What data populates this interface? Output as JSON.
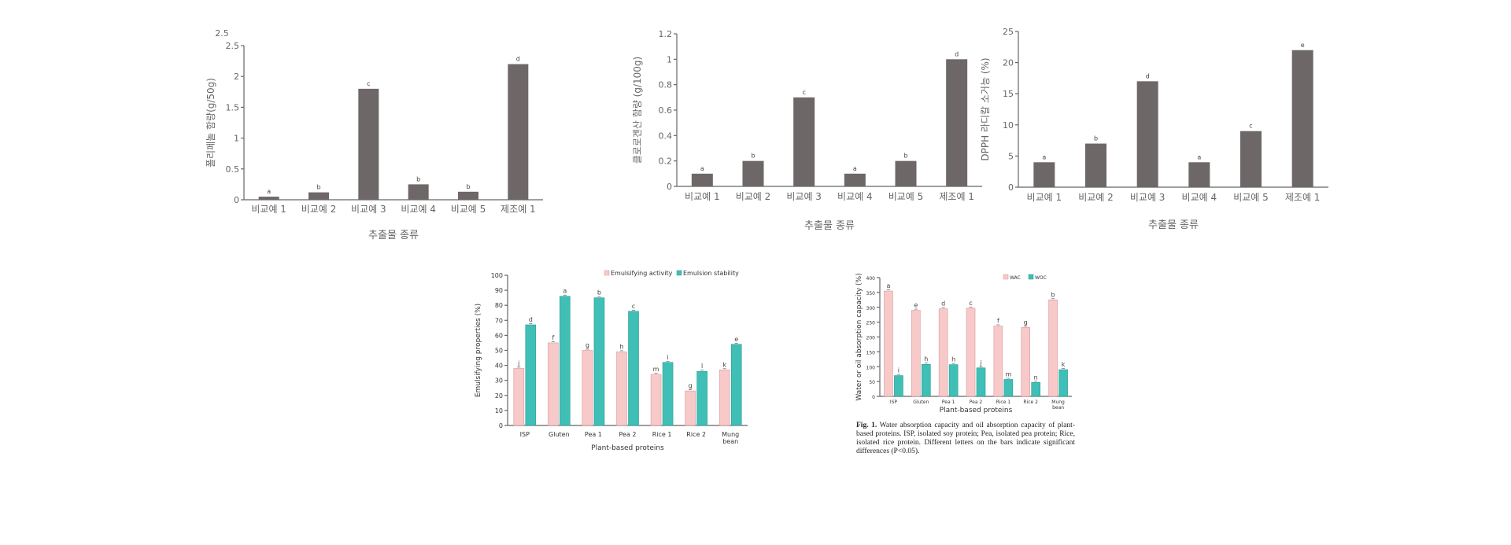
{
  "chart_data": [
    {
      "id": "chart1",
      "type": "bar",
      "ylabel": "폴리페놀 함량(g/50g)",
      "xlabel": "추출물 종류",
      "ylim": [
        0,
        2.5
      ],
      "yticks": [
        0,
        0.5,
        1,
        1.5,
        2,
        2.5
      ],
      "ytick_labels": [
        "0",
        "0.5",
        "1",
        "1.5",
        "2",
        "2.5"
      ],
      "extra_label": "2.5",
      "categories": [
        "비교예 1",
        "비교예 2",
        "비교예 3",
        "비교예 4",
        "비교예 5",
        "제조예 1"
      ],
      "values": [
        0.05,
        0.12,
        1.8,
        0.25,
        0.13,
        2.2
      ],
      "sig_letters": [
        "a",
        "b",
        "c",
        "b",
        "b",
        "d"
      ],
      "bar_color": "#6e6767"
    },
    {
      "id": "chart2",
      "type": "bar",
      "ylabel": "클로로겐산 함량 (g/100g)",
      "xlabel": "추출물 종류",
      "ylim": [
        0,
        1.2
      ],
      "yticks": [
        0,
        0.2,
        0.4,
        0.6,
        0.8,
        1,
        1.2
      ],
      "ytick_labels": [
        "0",
        "0.2",
        "0.4",
        "0.6",
        "0.8",
        "1",
        "1.2"
      ],
      "categories": [
        "비교예 1",
        "비교예 2",
        "비교예 3",
        "비교예 4",
        "비교예 5",
        "제조예 1"
      ],
      "values": [
        0.1,
        0.2,
        0.7,
        0.1,
        0.2,
        1.0
      ],
      "sig_letters": [
        "a",
        "b",
        "c",
        "a",
        "b",
        "d"
      ],
      "bar_color": "#6e6767"
    },
    {
      "id": "chart3",
      "type": "bar",
      "ylabel": "DPPH 라디칼 소거능 (%)",
      "xlabel": "추출물 종류",
      "ylim": [
        0,
        25
      ],
      "yticks": [
        0,
        5,
        10,
        15,
        20,
        25
      ],
      "ytick_labels": [
        "0",
        "5",
        "10",
        "15",
        "20",
        "25"
      ],
      "categories": [
        "비교예 1",
        "비교예 2",
        "비교예 3",
        "비교예 4",
        "비교예 5",
        "제조예 1"
      ],
      "values": [
        4,
        7,
        17,
        4,
        9,
        22
      ],
      "sig_letters": [
        "a",
        "b",
        "d",
        "a",
        "c",
        "e"
      ],
      "bar_color": "#6e6767"
    },
    {
      "id": "chart4",
      "type": "bar",
      "ylabel": "Emulsifying properties (%)",
      "xlabel": "Plant-based proteins",
      "ylim": [
        0,
        100
      ],
      "yticks": [
        0,
        10,
        20,
        30,
        40,
        50,
        60,
        70,
        80,
        90,
        100
      ],
      "ytick_labels": [
        "0",
        "10",
        "20",
        "30",
        "40",
        "50",
        "60",
        "70",
        "80",
        "90",
        "100"
      ],
      "categories": [
        "ISP",
        "Gluten",
        "Pea 1",
        "Pea 2",
        "Rice 1",
        "Rice 2",
        "Mung bean"
      ],
      "series": [
        {
          "name": "Emulsifying activity",
          "color": "#f7c9c9",
          "stroke": "#d89a9a",
          "values": [
            38,
            55,
            50,
            49,
            34,
            23,
            37
          ],
          "sig_letters": [
            "j",
            "f",
            "g",
            "h",
            "m",
            "g",
            "k"
          ]
        },
        {
          "name": "Emulsion stability",
          "color": "#3fbfb6",
          "stroke": "#2a9c94",
          "values": [
            67,
            86,
            85,
            76,
            42,
            36,
            54
          ],
          "sig_letters": [
            "d",
            "a",
            "b",
            "c",
            "i",
            "l",
            "e"
          ]
        }
      ]
    },
    {
      "id": "chart5",
      "type": "bar",
      "ylabel": "Water or oil absorption capacity (%)",
      "xlabel": "Plant-based proteins",
      "ylim": [
        0,
        400
      ],
      "yticks": [
        0,
        50,
        100,
        150,
        200,
        250,
        300,
        350,
        400
      ],
      "ytick_labels": [
        "0",
        "50",
        "100",
        "150",
        "200",
        "250",
        "300",
        "350",
        "400"
      ],
      "categories": [
        "ISP",
        "Gluten",
        "Pea 1",
        "Pea 2",
        "Rice 1",
        "Rice 2",
        "Mung bean"
      ],
      "series": [
        {
          "name": "WAC",
          "color": "#f7c9c9",
          "stroke": "#d89a9a",
          "values": [
            355,
            290,
            295,
            297,
            237,
            232,
            325
          ],
          "sig_letters": [
            "a",
            "e",
            "d",
            "c",
            "f",
            "g",
            "b"
          ]
        },
        {
          "name": "WOC",
          "color": "#3fbfb6",
          "stroke": "#2a9c94",
          "values": [
            70,
            108,
            107,
            96,
            57,
            47,
            90
          ],
          "sig_letters": [
            "i",
            "h",
            "h",
            "j",
            "m",
            "n",
            "k"
          ]
        }
      ]
    }
  ],
  "caption": {
    "label": "Fig. 1.",
    "text": " Water absorption capacity and oil absorption capacity of plant-based proteins. ISP, isolated soy protein; Pea, isolated pea protein; Rice, isolated rice protein. Different letters on the bars indicate significant differences (P<0.05)."
  }
}
